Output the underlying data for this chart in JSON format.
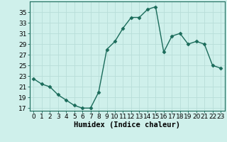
{
  "x": [
    0,
    1,
    2,
    3,
    4,
    5,
    6,
    7,
    8,
    9,
    10,
    11,
    12,
    13,
    14,
    15,
    16,
    17,
    18,
    19,
    20,
    21,
    22,
    23
  ],
  "y": [
    22.5,
    21.5,
    21.0,
    19.5,
    18.5,
    17.5,
    17.0,
    17.0,
    20.0,
    28.0,
    29.5,
    32.0,
    34.0,
    34.0,
    35.5,
    36.0,
    27.5,
    30.5,
    31.0,
    29.0,
    29.5,
    29.0,
    25.0,
    24.5
  ],
  "line_color": "#1a6b5a",
  "marker": "D",
  "marker_size": 2.5,
  "background_color": "#cff0eb",
  "grid_color": "#b8ddd8",
  "xlabel": "Humidex (Indice chaleur)",
  "xlabel_fontsize": 7.5,
  "ylabel_ticks": [
    17,
    19,
    21,
    23,
    25,
    27,
    29,
    31,
    33,
    35
  ],
  "xtick_labels": [
    "0",
    "1",
    "2",
    "3",
    "4",
    "5",
    "6",
    "7",
    "8",
    "9",
    "10",
    "11",
    "12",
    "13",
    "14",
    "15",
    "16",
    "17",
    "18",
    "19",
    "20",
    "21",
    "22",
    "23"
  ],
  "ylim": [
    16.5,
    37.0
  ],
  "xlim": [
    -0.5,
    23.5
  ],
  "tick_fontsize": 6.5
}
